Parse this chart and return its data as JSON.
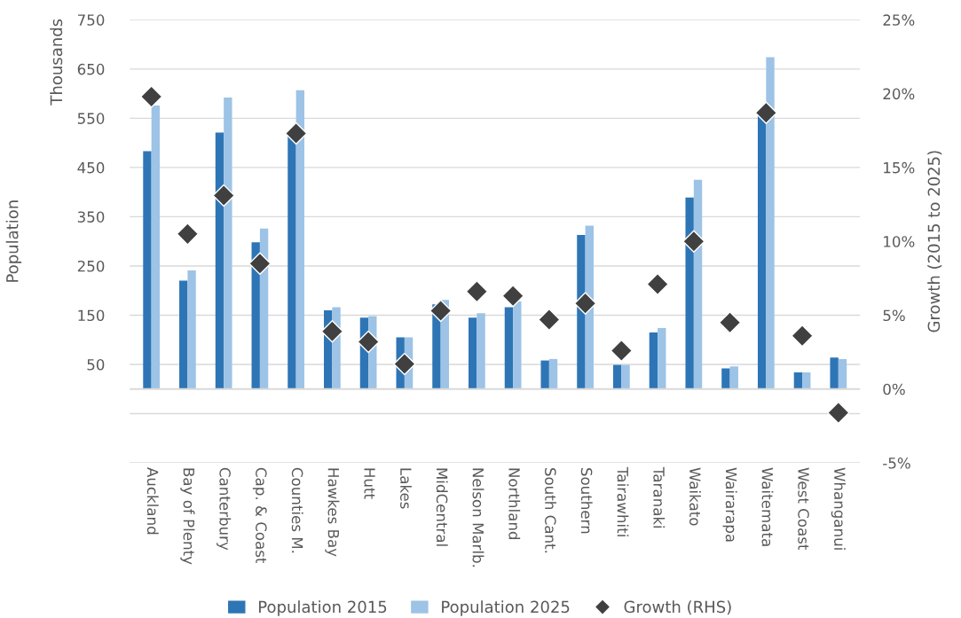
{
  "chart_data": {
    "type": "bar",
    "ylabel": "Population",
    "y2label": "Growth (2015 to 2025)",
    "annotations": [
      "Thousands"
    ],
    "categories": [
      "Auckland",
      "Bay of Plenty",
      "Canterbury",
      "Cap. & Coast",
      "Counties M.",
      "Hawkes Bay",
      "Hutt",
      "Lakes",
      "MidCentral",
      "Nelson Marlb.",
      "Northland",
      "South Cant.",
      "Southern",
      "Tairawhiti",
      "Taranaki",
      "Waikato",
      "Wairarapa",
      "Waitemata",
      "West Coast",
      "Whanganui"
    ],
    "series": [
      {
        "name": "Population 2015",
        "color": "#2e75b6",
        "values": [
          483,
          220,
          521,
          298,
          513,
          160,
          145,
          105,
          172,
          145,
          166,
          58,
          313,
          49,
          115,
          389,
          42,
          568,
          34,
          64
        ]
      },
      {
        "name": "Population 2025",
        "color": "#9dc3e6",
        "values": [
          576,
          241,
          592,
          326,
          607,
          166,
          148,
          105,
          181,
          154,
          178,
          61,
          332,
          49,
          124,
          425,
          46,
          674,
          34,
          61
        ]
      },
      {
        "name": "Growth (RHS)",
        "type": "scatter",
        "axis": "y2",
        "marker": "diamond",
        "color": "#404040",
        "values": [
          19.8,
          10.5,
          13.1,
          8.5,
          17.3,
          3.9,
          3.2,
          1.7,
          5.3,
          6.6,
          6.3,
          4.7,
          5.8,
          2.6,
          7.1,
          10.0,
          4.5,
          18.7,
          3.6,
          -1.6
        ]
      }
    ],
    "ylim": [
      -150,
      750
    ],
    "yticks": [
      {
        "value": -150,
        "label": null
      },
      {
        "value": -50,
        "label": null
      },
      50,
      150,
      250,
      350,
      450,
      550,
      650,
      750
    ],
    "y2lim": [
      -5,
      25
    ],
    "y2ticks": [
      {
        "value": -5,
        "label": "-5%"
      },
      {
        "value": 0,
        "label": "0%"
      },
      {
        "value": 5,
        "label": "5%"
      },
      {
        "value": 10,
        "label": "10%"
      },
      {
        "value": 15,
        "label": "15%"
      },
      {
        "value": 20,
        "label": "20%"
      },
      {
        "value": 25,
        "label": "25%"
      }
    ],
    "ref_lines": [
      {
        "axis": "y",
        "value": 0,
        "label": null,
        "color": "#d9d9d9"
      }
    ],
    "grid": "y",
    "legend": "bottom"
  }
}
